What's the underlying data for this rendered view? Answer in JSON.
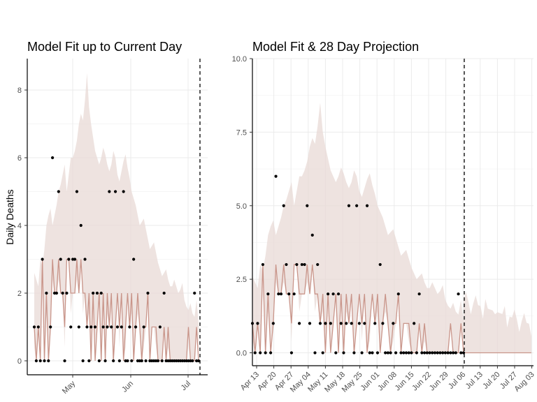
{
  "chart_data": [
    {
      "type": "line",
      "title": "Model Fit up to Current Day",
      "xlabel": "",
      "ylabel": "Daily Deaths",
      "x_tick_labels": [
        "May",
        "Jun",
        "Jul"
      ],
      "y_tick_labels": [
        "0",
        "2",
        "4",
        "6",
        "8"
      ],
      "ylim": [
        -0.4,
        8.9
      ],
      "grid": true,
      "legend": "none",
      "current_day_line": "2020-07-06",
      "series": [
        {
          "kind": "ribbon",
          "values": "model confidence band (upper)",
          "upper": [
            2.6,
            2.4,
            2.2,
            3.0,
            2.8,
            3.3,
            4.0,
            4.3,
            4.5,
            4.0,
            4.3,
            4.6,
            5.0,
            5.2,
            5.5,
            5.8,
            5.0,
            5.5,
            6.0,
            6.0,
            6.2,
            6.5,
            7.0,
            7.3,
            7.1,
            7.7,
            8.5,
            7.5,
            7.0,
            6.6,
            6.2,
            6.0,
            5.8,
            6.0,
            6.3,
            6.1,
            5.8,
            5.6,
            5.8,
            6.2,
            6.0,
            5.5,
            5.3,
            5.6,
            5.9,
            6.1,
            5.7,
            5.4,
            5.0,
            4.8,
            4.6,
            4.3,
            4.0,
            4.1,
            4.2,
            3.9,
            3.6,
            3.3,
            3.4,
            3.5,
            3.2,
            2.9,
            2.7,
            2.5,
            2.6,
            2.7,
            2.4,
            2.2,
            2.2,
            2.4,
            2.2,
            2.0,
            2.1,
            2.3,
            1.8,
            1.6,
            1.5,
            1.7,
            1.4,
            1.3,
            1.8,
            1.1
          ]
        },
        {
          "kind": "line",
          "values": [
            1,
            0,
            1,
            0,
            3,
            0,
            2,
            0,
            1,
            3,
            2,
            2,
            3,
            2,
            2,
            1,
            3,
            3,
            2,
            2,
            2,
            3,
            2,
            3,
            2,
            2,
            1,
            2,
            0,
            2,
            0,
            1,
            2,
            0,
            2,
            0,
            2,
            1,
            2,
            0,
            1,
            2,
            1,
            2,
            0,
            1,
            2,
            1,
            2,
            0,
            1,
            2,
            1,
            0,
            1,
            1,
            2,
            0,
            1,
            1,
            1,
            0,
            0,
            0,
            1,
            0,
            1,
            0,
            0,
            0,
            0,
            0,
            0,
            0,
            0,
            0,
            1,
            0,
            0,
            0,
            1,
            0
          ]
        },
        {
          "kind": "points",
          "values": [
            1,
            0,
            1,
            0,
            3,
            0,
            2,
            0,
            1,
            6,
            2,
            2,
            5,
            3,
            2,
            0,
            2,
            3,
            1,
            3,
            3,
            5,
            1,
            4,
            0,
            3,
            1,
            0,
            1,
            2,
            1,
            2,
            0,
            2,
            1,
            0,
            1,
            5,
            1,
            0,
            5,
            1,
            0,
            1,
            5,
            0,
            0,
            1,
            0,
            3,
            1,
            0,
            0,
            0,
            1,
            0,
            2,
            0,
            0,
            0,
            0,
            0,
            1,
            0,
            2,
            0,
            0,
            0,
            0,
            0,
            0,
            0,
            0,
            0,
            0,
            0,
            0,
            0,
            0,
            2,
            0,
            0
          ]
        }
      ]
    },
    {
      "type": "line",
      "title": "Model Fit & 28 Day Projection",
      "xlabel": "",
      "ylabel": "",
      "x_tick_labels": [
        "Apr 13",
        "Apr 20",
        "Apr 27",
        "May 04",
        "May 11",
        "May 18",
        "May 25",
        "Jun 01",
        "Jun 08",
        "Jun 15",
        "Jun 22",
        "Jun 29",
        "Jul 06",
        "Jul 13",
        "Jul 20",
        "Jul 27",
        "Aug 03"
      ],
      "y_tick_labels": [
        "0.0",
        "2.5",
        "5.0",
        "7.5",
        "10.0"
      ],
      "ylim": [
        -0.45,
        10.0
      ],
      "grid": true,
      "legend": "none",
      "current_day_line": "Jul 06"
    }
  ]
}
